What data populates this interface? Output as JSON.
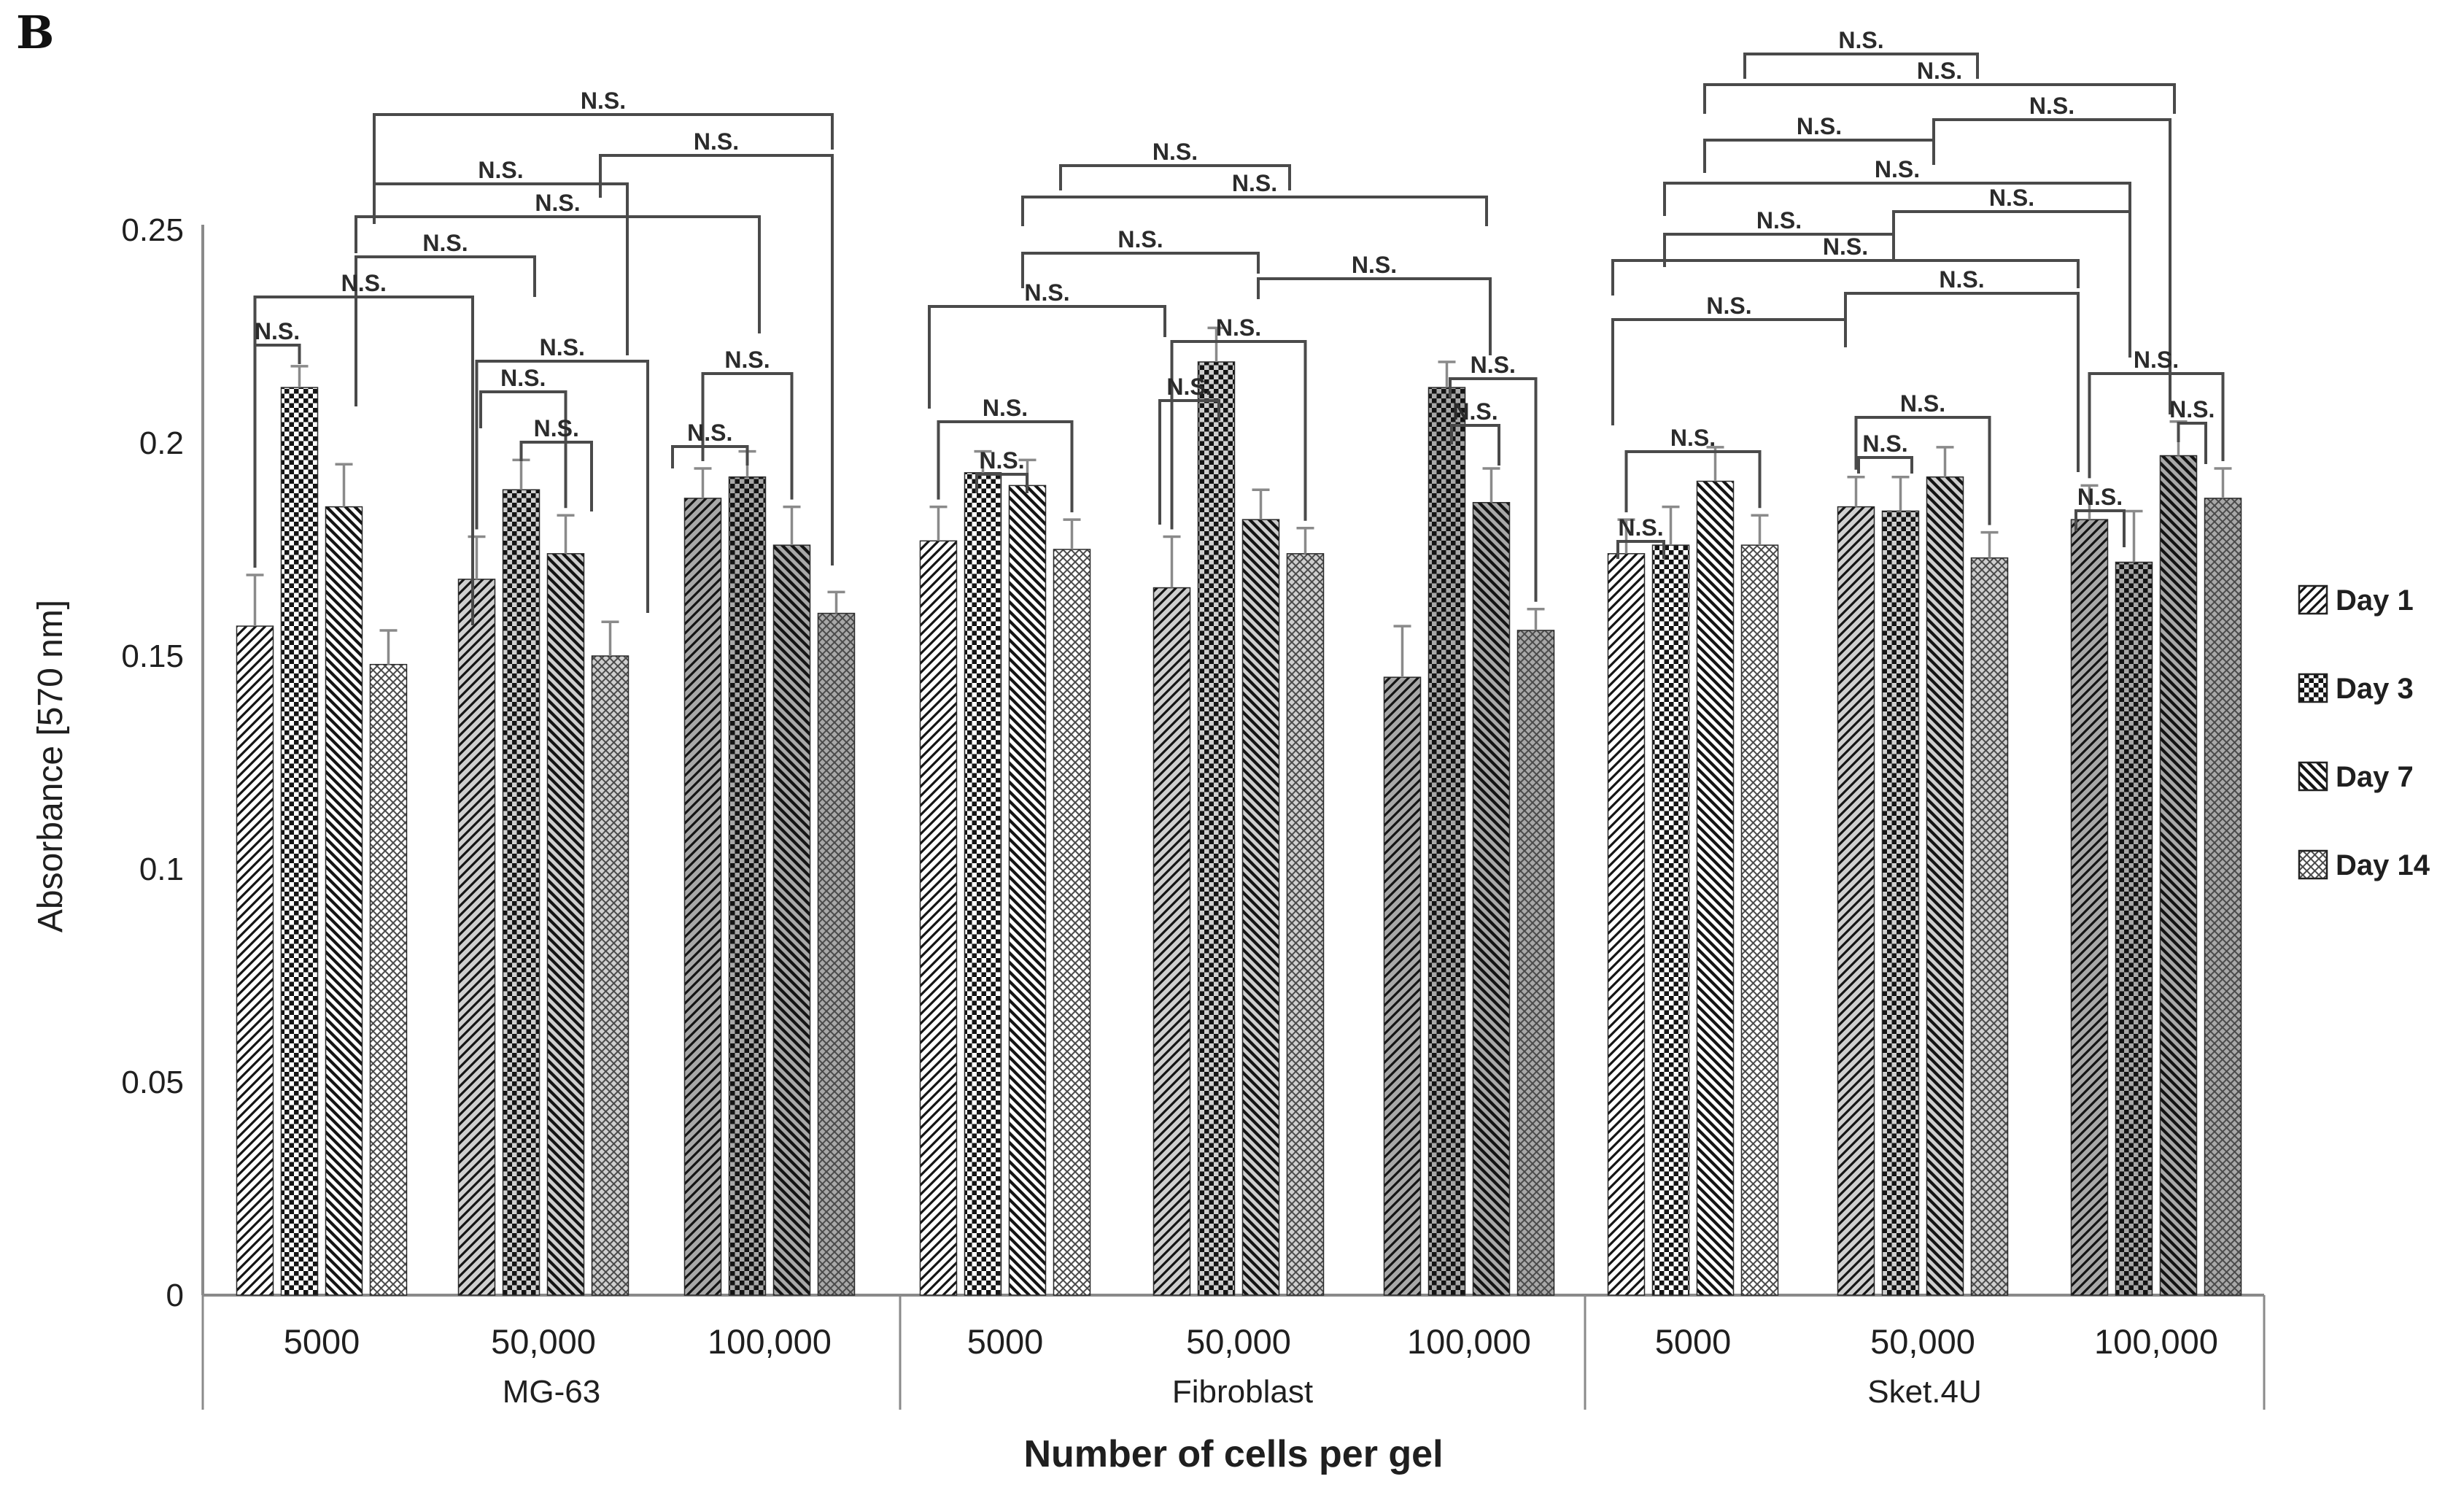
{
  "panel_label": "B",
  "colors": {
    "text": "#1f1f1f",
    "axis_line": "#8a8a8a",
    "bracket_line": "#4a4a4a",
    "error_bar": "#8a8a8a",
    "pattern_ink": "#141414",
    "subgroup_shades": [
      "#ffffff",
      "#cfcfcf",
      "#a8a8a8"
    ]
  },
  "legend": {
    "items": [
      {
        "label": "Day 1",
        "icon": "diagonal-up-stripes-swatch"
      },
      {
        "label": "Day 3",
        "icon": "checkerboard-swatch"
      },
      {
        "label": "Day 7",
        "icon": "diagonal-down-stripes-swatch"
      },
      {
        "label": "Day 14",
        "icon": "crosshatch-swatch"
      }
    ]
  },
  "chart_data": {
    "type": "bar",
    "title": "",
    "xlabel": "Number of cells per gel",
    "ylabel": "Absorbance [570 nm]",
    "ylim": [
      0,
      0.25
    ],
    "grid": false,
    "legend_position": "right-outside",
    "yticks": [
      {
        "label": "0",
        "value": 0
      },
      {
        "label": "0.05",
        "value": 0.05
      },
      {
        "label": "0.1",
        "value": 0.1
      },
      {
        "label": "0.15",
        "value": 0.15
      },
      {
        "label": "0.2",
        "value": 0.2
      },
      {
        "label": "0.25",
        "value": 0.25
      }
    ],
    "groups": [
      "MG-63",
      "Fibroblast",
      "Sket.4U"
    ],
    "categories": [
      "5000",
      "50,000",
      "100,000"
    ],
    "ns_label": "N.S.",
    "series": [
      {
        "name": "Day 1",
        "pattern": "diag-up",
        "values": [
          [
            0.157,
            0.168,
            0.187
          ],
          [
            0.177,
            0.166,
            0.145
          ],
          [
            0.174,
            0.185,
            0.182
          ]
        ],
        "errors": [
          [
            0.012,
            0.01,
            0.007
          ],
          [
            0.008,
            0.012,
            0.012
          ],
          [
            0.008,
            0.007,
            0.008
          ]
        ]
      },
      {
        "name": "Day 3",
        "pattern": "checker",
        "values": [
          [
            0.213,
            0.189,
            0.192
          ],
          [
            0.193,
            0.219,
            0.213
          ],
          [
            0.176,
            0.184,
            0.172
          ]
        ],
        "errors": [
          [
            0.005,
            0.007,
            0.006
          ],
          [
            0.005,
            0.008,
            0.006
          ],
          [
            0.009,
            0.008,
            0.012
          ]
        ]
      },
      {
        "name": "Day 7",
        "pattern": "diag-down",
        "values": [
          [
            0.185,
            0.174,
            0.176
          ],
          [
            0.19,
            0.182,
            0.186
          ],
          [
            0.191,
            0.192,
            0.197
          ]
        ],
        "errors": [
          [
            0.01,
            0.009,
            0.009
          ],
          [
            0.006,
            0.007,
            0.008
          ],
          [
            0.008,
            0.007,
            0.008
          ]
        ]
      },
      {
        "name": "Day 14",
        "pattern": "crosshatch",
        "values": [
          [
            0.148,
            0.15,
            0.16
          ],
          [
            0.175,
            0.174,
            0.156
          ],
          [
            0.176,
            0.173,
            0.187
          ]
        ],
        "errors": [
          [
            0.008,
            0.008,
            0.005
          ],
          [
            0.007,
            0.006,
            0.005
          ],
          [
            0.007,
            0.006,
            0.007
          ]
        ]
      }
    ],
    "brackets": [
      {
        "y": 157,
        "a": {
          "x": 513,
          "leg": 95
        },
        "b": {
          "x": 1141,
          "leg": 48
        }
      },
      {
        "y": 213,
        "a": {
          "x": 823,
          "leg": 58
        },
        "b": {
          "x": 1141,
          "leg": 562
        }
      },
      {
        "y": 252,
        "a": {
          "x": 513,
          "leg": 55
        },
        "b": {
          "x": 860,
          "leg": 235
        }
      },
      {
        "y": 297,
        "a": {
          "x": 488,
          "leg": 50
        },
        "b": {
          "x": 1041,
          "leg": 160
        }
      },
      {
        "y": 352,
        "a": {
          "x": 488,
          "leg": 205
        },
        "b": {
          "x": 733,
          "leg": 55
        }
      },
      {
        "y": 407,
        "a": {
          "bar": [
            0,
            0,
            0
          ]
        },
        "b": {
          "x": 648,
          "leg": 450
        }
      },
      {
        "y": 473,
        "a": {
          "bar": [
            0,
            0,
            0
          ]
        },
        "b": {
          "bar": [
            0,
            0,
            1
          ]
        }
      },
      {
        "y": 495,
        "a": {
          "bar": [
            0,
            1,
            0
          ]
        },
        "b": {
          "x": 888,
          "leg": 345
        }
      },
      {
        "y": 537,
        "a": {
          "x": 659,
          "leg": 50
        },
        "b": {
          "bar": [
            0,
            1,
            2
          ]
        }
      },
      {
        "y": 606,
        "a": {
          "bar": [
            0,
            1,
            1
          ]
        },
        "b": {
          "x": 811,
          "leg": 95
        }
      },
      {
        "y": 512,
        "a": {
          "bar": [
            0,
            2,
            0
          ]
        },
        "b": {
          "bar": [
            0,
            2,
            2
          ]
        }
      },
      {
        "y": 612,
        "a": {
          "x": 922,
          "leg": 30
        },
        "b": {
          "bar": [
            0,
            2,
            1
          ]
        }
      },
      {
        "y": 227,
        "a": {
          "x": 1454,
          "leg": 34
        },
        "b": {
          "x": 1768,
          "leg": 34
        }
      },
      {
        "y": 270,
        "a": {
          "x": 1402,
          "leg": 40
        },
        "b": {
          "x": 2038,
          "leg": 40
        }
      },
      {
        "y": 347,
        "a": {
          "x": 1402,
          "leg": 48
        },
        "b": {
          "x": 1725,
          "leg": 28
        }
      },
      {
        "y": 382,
        "a": {
          "x": 1725,
          "leg": 28
        },
        "b": {
          "x": 2043,
          "leg": 105
        }
      },
      {
        "y": 420,
        "a": {
          "x": 1274,
          "leg": 140
        },
        "b": {
          "x": 1597,
          "leg": 42
        }
      },
      {
        "y": 468,
        "a": {
          "bar": [
            1,
            1,
            0
          ]
        },
        "b": {
          "bar": [
            1,
            1,
            3
          ]
        }
      },
      {
        "y": 549,
        "a": {
          "x": 1590,
          "leg": 170
        },
        "b": {
          "x": 1671,
          "leg": 28
        }
      },
      {
        "y": 578,
        "a": {
          "bar": [
            1,
            0,
            0
          ]
        },
        "b": {
          "bar": [
            1,
            0,
            3
          ]
        }
      },
      {
        "y": 650,
        "a": {
          "x": 1339,
          "leg": 26
        },
        "b": {
          "x": 1408,
          "leg": 26
        }
      },
      {
        "y": 519,
        "a": {
          "x": 1988,
          "leg": 26
        },
        "b": {
          "bar": [
            1,
            2,
            3
          ]
        }
      },
      {
        "y": 583,
        "a": {
          "x": 1990,
          "leg": 26
        },
        "b": {
          "x": 2055,
          "leg": 55
        }
      },
      {
        "y": 74,
        "a": {
          "x": 2392,
          "leg": 34
        },
        "b": {
          "x": 2711,
          "leg": 34
        }
      },
      {
        "y": 116,
        "a": {
          "x": 2337,
          "leg": 40
        },
        "b": {
          "x": 2981,
          "leg": 40
        }
      },
      {
        "y": 164,
        "a": {
          "x": 2651,
          "leg": 40
        },
        "b": {
          "x": 2975,
          "leg": 404
        }
      },
      {
        "y": 192,
        "a": {
          "x": 2337,
          "leg": 45
        },
        "b": {
          "x": 2651,
          "leg": 34
        }
      },
      {
        "y": 251,
        "a": {
          "x": 2282,
          "leg": 45
        },
        "b": {
          "x": 2920,
          "leg": 38
        }
      },
      {
        "y": 290,
        "a": {
          "x": 2596,
          "leg": 38
        },
        "b": {
          "x": 2920,
          "leg": 200
        }
      },
      {
        "y": 321,
        "a": {
          "x": 2282,
          "leg": 45
        },
        "b": {
          "x": 2596,
          "leg": 34
        }
      },
      {
        "y": 357,
        "a": {
          "x": 2211,
          "leg": 48
        },
        "b": {
          "x": 2849,
          "leg": 38
        }
      },
      {
        "y": 402,
        "a": {
          "x": 2530,
          "leg": 38
        },
        "b": {
          "x": 2849,
          "leg": 245
        }
      },
      {
        "y": 438,
        "a": {
          "x": 2211,
          "leg": 145
        },
        "b": {
          "x": 2530,
          "leg": 38
        }
      },
      {
        "y": 512,
        "a": {
          "bar": [
            2,
            2,
            0
          ]
        },
        "b": {
          "bar": [
            2,
            2,
            3
          ]
        }
      },
      {
        "y": 580,
        "a": {
          "bar": [
            2,
            2,
            2
          ]
        },
        "b": {
          "x": 3024,
          "leg": 56
        }
      },
      {
        "y": 700,
        "a": {
          "x": 2846,
          "leg": 28
        },
        "b": {
          "x": 2912,
          "leg": 50
        }
      },
      {
        "y": 619,
        "a": {
          "bar": [
            2,
            0,
            0
          ]
        },
        "b": {
          "bar": [
            2,
            0,
            3
          ]
        }
      },
      {
        "y": 742,
        "a": {
          "x": 2218,
          "leg": 24
        },
        "b": {
          "x": 2281,
          "leg": 24
        }
      },
      {
        "y": 572,
        "a": {
          "bar": [
            2,
            1,
            0
          ]
        },
        "b": {
          "bar": [
            2,
            1,
            3
          ]
        }
      },
      {
        "y": 627,
        "a": {
          "x": 2548,
          "leg": 22
        },
        "b": {
          "x": 2621,
          "leg": 22
        }
      }
    ]
  }
}
